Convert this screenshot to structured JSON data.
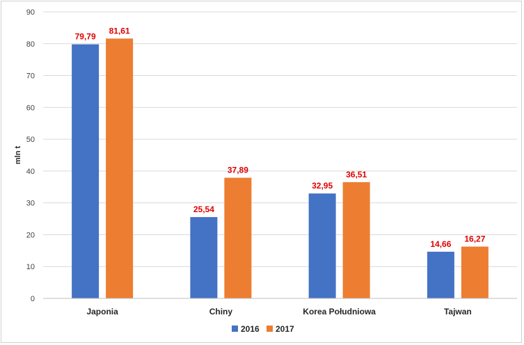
{
  "chart_data": {
    "type": "bar",
    "categories": [
      "Japonia",
      "Chiny",
      "Korea Południowa",
      "Tajwan"
    ],
    "series": [
      {
        "name": "2016",
        "values": [
          79.79,
          25.54,
          32.95,
          14.66
        ],
        "labels": [
          "79,79",
          "25,54",
          "32,95",
          "14,66"
        ],
        "color": "#4472c4"
      },
      {
        "name": "2017",
        "values": [
          81.61,
          37.89,
          36.51,
          16.27
        ],
        "labels": [
          "81,61",
          "37,89",
          "36,51",
          "16,27"
        ],
        "color": "#ed7d31"
      }
    ],
    "ylabel": "mln t",
    "ylim": [
      0,
      90
    ],
    "yticks": [
      0,
      10,
      20,
      30,
      40,
      50,
      60,
      70,
      80,
      90
    ],
    "grid": true,
    "legend": "bottom",
    "data_label_color": "#e00000"
  }
}
